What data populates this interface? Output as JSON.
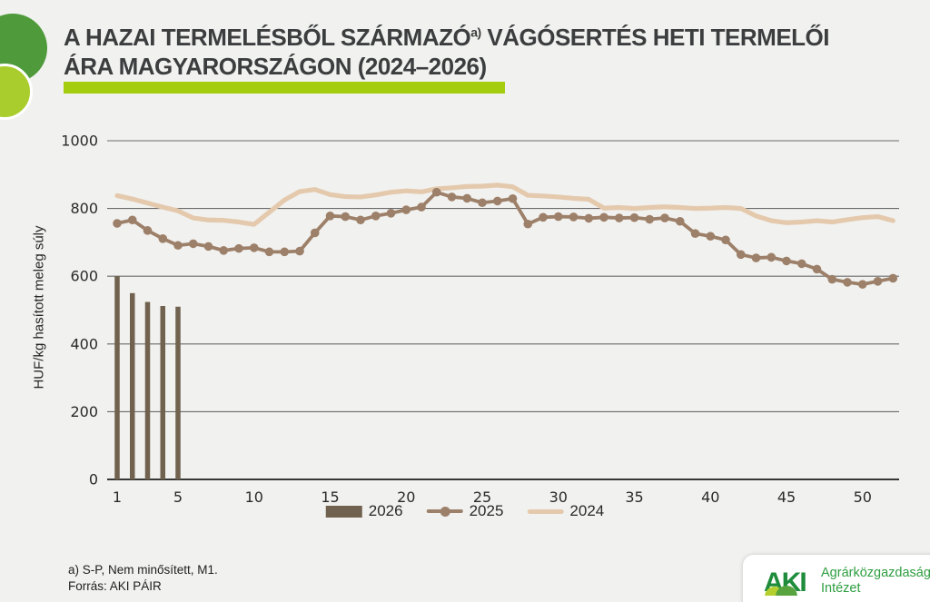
{
  "header": {
    "title_line1_pre": "A HAZAI TERMELÉSBŐL SZÁRMAZÓ",
    "title_superscript": "a)",
    "title_line1_post": " VÁGÓSERTÉS HETI TERMELŐI",
    "title_line2": "ÁRA MAGYARORSZÁGON (2024–2026)"
  },
  "chart_data": {
    "type": "mixed-bar-line",
    "title": "A hazai termelésből származó vágósertés heti termelői ára Magyarországon (2024–2026)",
    "xlabel": "",
    "ylabel": "HUF/kg hasított meleg súly",
    "ylim": [
      0,
      1000
    ],
    "yticks": [
      0,
      200,
      400,
      600,
      800,
      1000
    ],
    "xticks": [
      1,
      5,
      10,
      15,
      20,
      25,
      30,
      35,
      40,
      45,
      50
    ],
    "x_unit": "week-of-year",
    "grid": "horizontal",
    "legend_position": "bottom-center",
    "series": [
      {
        "name": "2026",
        "type": "bar",
        "color": "#71624f",
        "weeks": [
          1,
          2,
          3,
          4,
          5
        ],
        "values": [
          600,
          550,
          524,
          512,
          510
        ]
      },
      {
        "name": "2025",
        "type": "line",
        "markers": true,
        "color": "#9d8069",
        "week_start": 1,
        "values": [
          756,
          766,
          735,
          711,
          691,
          696,
          688,
          676,
          682,
          684,
          672,
          672,
          674,
          728,
          778,
          776,
          766,
          778,
          786,
          796,
          804,
          848,
          834,
          830,
          817,
          822,
          829,
          754,
          774,
          776,
          775,
          771,
          774,
          772,
          773,
          768,
          772,
          762,
          726,
          718,
          707,
          664,
          654,
          656,
          645,
          637,
          621,
          591,
          582,
          576,
          585,
          594
        ]
      },
      {
        "name": "2024",
        "type": "line",
        "markers": false,
        "color": "#e4c9ad",
        "week_start": 1,
        "values": [
          838,
          828,
          816,
          804,
          793,
          772,
          766,
          765,
          760,
          753,
          789,
          825,
          850,
          856,
          841,
          835,
          834,
          840,
          848,
          852,
          849,
          858,
          861,
          865,
          866,
          869,
          864,
          839,
          837,
          834,
          830,
          827,
          801,
          803,
          800,
          803,
          805,
          803,
          800,
          801,
          803,
          800,
          778,
          764,
          758,
          760,
          764,
          760,
          767,
          773,
          776,
          764
        ]
      }
    ]
  },
  "footnotes": {
    "note_a": "a) S-P, Nem minősített, M1.",
    "source": "Forrás: AKI PÁIR"
  },
  "logo": {
    "mark": "AKI",
    "org_line1": "Agrárközgazdasági",
    "org_line2": "Intézet",
    "accent_green": "#a3cd0e",
    "dark_green": "#4f9b3b",
    "light_green": "#a9cd2c",
    "logo_green": "#2f9e41"
  }
}
